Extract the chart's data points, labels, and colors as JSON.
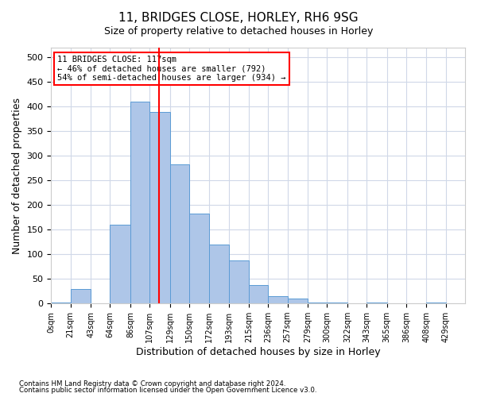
{
  "title1": "11, BRIDGES CLOSE, HORLEY, RH6 9SG",
  "title2": "Size of property relative to detached houses in Horley",
  "xlabel": "Distribution of detached houses by size in Horley",
  "ylabel": "Number of detached properties",
  "annotation_line1": "11 BRIDGES CLOSE: 117sqm",
  "annotation_line2": "← 46% of detached houses are smaller (792)",
  "annotation_line3": "54% of semi-detached houses are larger (934) →",
  "property_size": 117,
  "bar_color": "#aec6e8",
  "bar_edge_color": "#5b9bd5",
  "vline_color": "red",
  "categories": [
    "0sqm",
    "21sqm",
    "43sqm",
    "64sqm",
    "86sqm",
    "107sqm",
    "129sqm",
    "150sqm",
    "172sqm",
    "193sqm",
    "215sqm",
    "236sqm",
    "257sqm",
    "279sqm",
    "300sqm",
    "322sqm",
    "343sqm",
    "365sqm",
    "386sqm",
    "408sqm",
    "429sqm"
  ],
  "bin_edges": [
    0,
    21,
    43,
    64,
    86,
    107,
    129,
    150,
    172,
    193,
    215,
    236,
    257,
    279,
    300,
    322,
    343,
    365,
    386,
    408,
    429,
    450
  ],
  "bar_heights": [
    2,
    30,
    0,
    160,
    410,
    390,
    283,
    183,
    120,
    87,
    38,
    15,
    10,
    2,
    2,
    0,
    2,
    0,
    0,
    2,
    0
  ],
  "ylim": [
    0,
    520
  ],
  "yticks": [
    0,
    50,
    100,
    150,
    200,
    250,
    300,
    350,
    400,
    450,
    500
  ],
  "footnote1": "Contains HM Land Registry data © Crown copyright and database right 2024.",
  "footnote2": "Contains public sector information licensed under the Open Government Licence v3.0.",
  "bg_color": "#ffffff",
  "grid_color": "#d0d8e8"
}
